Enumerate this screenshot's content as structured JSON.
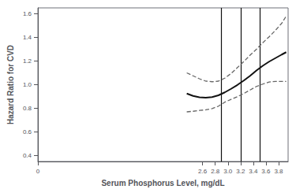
{
  "chart_data": {
    "type": "line",
    "xlabel": "Serum Phosphorus Level, mg/dL",
    "ylabel": "Hazard Ratio for CVD",
    "x": [
      2.35,
      2.45,
      2.55,
      2.65,
      2.75,
      2.85,
      2.95,
      3.05,
      3.15,
      3.25,
      3.35,
      3.45,
      3.55,
      3.65,
      3.75,
      3.85,
      3.92
    ],
    "series": [
      {
        "color": "#111111",
        "line_style": "solid",
        "values": [
          0.925,
          0.905,
          0.893,
          0.89,
          0.895,
          0.91,
          0.935,
          0.965,
          0.998,
          1.035,
          1.075,
          1.12,
          1.16,
          1.195,
          1.225,
          1.255,
          1.275
        ]
      },
      {
        "color": "#666666",
        "line_style": "dashed",
        "values": [
          1.1,
          1.075,
          1.05,
          1.03,
          1.025,
          1.03,
          1.055,
          1.095,
          1.145,
          1.195,
          1.25,
          1.3,
          1.355,
          1.405,
          1.46,
          1.52,
          1.58
        ]
      },
      {
        "color": "#666666",
        "line_style": "dashed",
        "values": [
          0.77,
          0.775,
          0.782,
          0.787,
          0.798,
          0.818,
          0.852,
          0.876,
          0.898,
          0.925,
          0.955,
          0.985,
          1.005,
          1.022,
          1.028,
          1.028,
          1.028
        ]
      }
    ],
    "vlines": {
      "x": [
        2.9,
        3.2,
        3.5
      ],
      "color": "#111111"
    },
    "xlim": [
      0.0,
      3.95
    ],
    "ylim": [
      0.35,
      1.65
    ],
    "xticks": [
      0,
      2.6,
      2.8,
      {
        "value": 3.0,
        "label": "3.0"
      },
      3.2,
      3.4,
      3.6,
      3.8
    ],
    "yticks": [
      0.4,
      0.6,
      0.8,
      {
        "value": 1.0,
        "label": "1.0"
      },
      1.2,
      1.4,
      1.6
    ],
    "grid": false
  }
}
